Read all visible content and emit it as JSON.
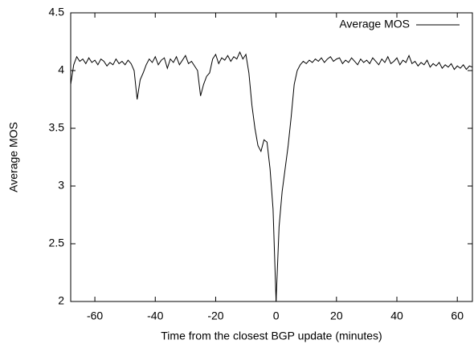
{
  "chart_data": {
    "type": "line",
    "x_label": "Time from the closest BGP update (minutes)",
    "y_label": "Average MOS",
    "x": [
      -68,
      -67,
      -66,
      -65,
      -64,
      -63,
      -62,
      -61,
      -60,
      -59,
      -58,
      -57,
      -56,
      -55,
      -54,
      -53,
      -52,
      -51,
      -50,
      -49,
      -48,
      -47,
      -46,
      -45,
      -44,
      -43,
      -42,
      -41,
      -40,
      -39,
      -38,
      -37,
      -36,
      -35,
      -34,
      -33,
      -32,
      -31,
      -30,
      -29,
      -28,
      -27,
      -26,
      -25,
      -24,
      -23,
      -22,
      -21,
      -20,
      -19,
      -18,
      -17,
      -16,
      -15,
      -14,
      -13,
      -12,
      -11,
      -10,
      -9,
      -8,
      -7,
      -6,
      -5,
      -4,
      -3,
      -2,
      -1,
      0,
      1,
      2,
      3,
      4,
      5,
      6,
      7,
      8,
      9,
      10,
      11,
      12,
      13,
      14,
      15,
      16,
      17,
      18,
      19,
      20,
      21,
      22,
      23,
      24,
      25,
      26,
      27,
      28,
      29,
      30,
      31,
      32,
      33,
      34,
      35,
      36,
      37,
      38,
      39,
      40,
      41,
      42,
      43,
      44,
      45,
      46,
      47,
      48,
      49,
      50,
      51,
      52,
      53,
      54,
      55,
      56,
      57,
      58,
      59,
      60,
      61,
      62,
      63,
      64,
      65
    ],
    "series": [
      {
        "name": "Average MOS",
        "color": "#000000",
        "values": [
          3.88,
          4.05,
          4.12,
          4.08,
          4.1,
          4.06,
          4.11,
          4.07,
          4.09,
          4.05,
          4.1,
          4.08,
          4.04,
          4.07,
          4.05,
          4.1,
          4.06,
          4.08,
          4.05,
          4.09,
          4.06,
          4.0,
          3.75,
          3.92,
          3.98,
          4.05,
          4.1,
          4.07,
          4.12,
          4.05,
          4.09,
          4.11,
          4.02,
          4.1,
          4.07,
          4.12,
          4.05,
          4.09,
          4.13,
          4.06,
          4.08,
          4.04,
          4.0,
          3.78,
          3.88,
          3.95,
          3.98,
          4.1,
          4.14,
          4.06,
          4.11,
          4.09,
          4.13,
          4.08,
          4.12,
          4.1,
          4.16,
          4.1,
          4.14,
          3.98,
          3.7,
          3.5,
          3.35,
          3.3,
          3.4,
          3.38,
          3.15,
          2.8,
          2.0,
          2.65,
          2.95,
          3.15,
          3.35,
          3.6,
          3.88,
          4.0,
          4.05,
          4.08,
          4.06,
          4.09,
          4.07,
          4.1,
          4.08,
          4.11,
          4.07,
          4.1,
          4.12,
          4.08,
          4.1,
          4.11,
          4.06,
          4.09,
          4.07,
          4.11,
          4.08,
          4.05,
          4.1,
          4.07,
          4.09,
          4.06,
          4.11,
          4.08,
          4.05,
          4.1,
          4.07,
          4.12,
          4.06,
          4.08,
          4.11,
          4.05,
          4.09,
          4.07,
          4.13,
          4.06,
          4.08,
          4.04,
          4.07,
          4.05,
          4.09,
          4.03,
          4.06,
          4.04,
          4.07,
          4.02,
          4.05,
          4.03,
          4.06,
          4.01,
          4.04,
          4.02,
          4.05,
          4.01,
          4.04,
          4.03
        ]
      }
    ],
    "xlim": [
      -68,
      65
    ],
    "ylim": [
      2,
      4.5
    ],
    "xticks": [
      -60,
      -40,
      -20,
      0,
      20,
      40,
      60
    ],
    "yticks": [
      2,
      2.5,
      3,
      3.5,
      4,
      4.5
    ],
    "legend": "upper right"
  }
}
